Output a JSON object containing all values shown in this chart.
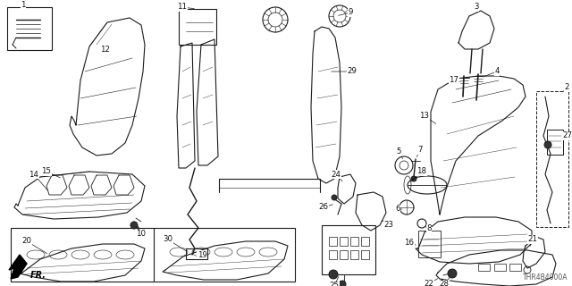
{
  "bg_color": "#ffffff",
  "line_color": "#1a1a1a",
  "diagram_code": "THR4B4000A",
  "fig_width": 6.4,
  "fig_height": 3.2,
  "dpi": 100
}
